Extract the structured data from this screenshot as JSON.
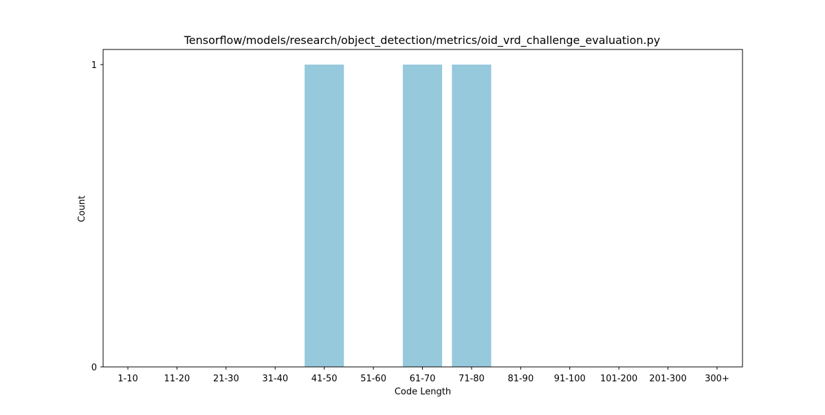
{
  "chart_data": {
    "type": "bar",
    "title": "Tensorflow/models/research/object_detection/metrics/oid_vrd_challenge_evaluation.py",
    "xlabel": "Code Length",
    "ylabel": "Count",
    "categories": [
      "1-10",
      "11-20",
      "21-30",
      "31-40",
      "41-50",
      "51-60",
      "61-70",
      "71-80",
      "81-90",
      "91-100",
      "101-200",
      "201-300",
      "300+"
    ],
    "values": [
      0,
      0,
      0,
      0,
      1,
      0,
      1,
      1,
      0,
      0,
      0,
      0,
      0
    ],
    "yticks": [
      0,
      1
    ],
    "ylim": [
      0,
      1.05
    ],
    "grid": false,
    "bar_color": "#96c9dc"
  }
}
